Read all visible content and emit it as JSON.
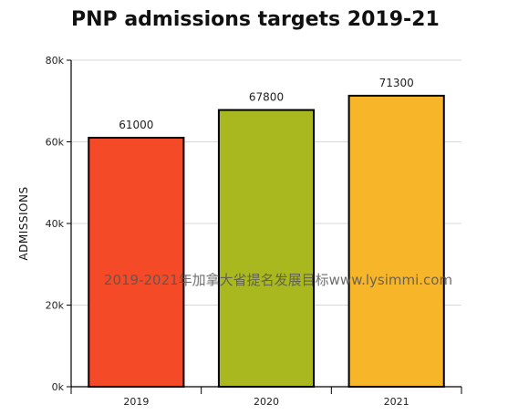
{
  "chart_data": {
    "type": "bar",
    "title": "PNP admissions targets 2019-21",
    "xlabel": "",
    "ylabel": "ADMISSIONS",
    "categories": [
      "2019",
      "2020",
      "2021"
    ],
    "values": [
      61000,
      67800,
      71300
    ],
    "data_labels": [
      "61000",
      "67800",
      "71300"
    ],
    "colors": [
      "#f44a28",
      "#a9b81f",
      "#f7b52a"
    ],
    "ylim": [
      0,
      80000
    ],
    "yticks": [
      0,
      20000,
      40000,
      60000,
      80000
    ],
    "ytick_labels": [
      "0k",
      "20k",
      "40k",
      "60k",
      "80k"
    ],
    "grid": true
  },
  "watermark": "2019-2021年加拿大省提名发展目标www.lysimmi.com"
}
